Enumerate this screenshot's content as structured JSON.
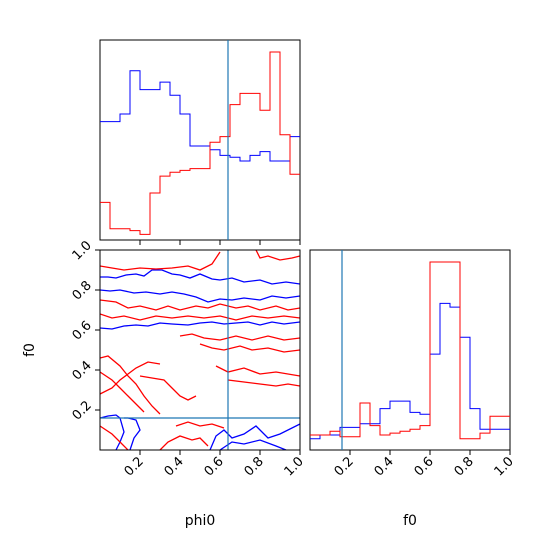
{
  "chart_data": {
    "type": "corner",
    "truth": {
      "phi0": 0.64,
      "f0": 0.16
    },
    "series_colors": {
      "blue": "#0000ff",
      "red": "#ff0000",
      "truth": "#1f77b4"
    },
    "panels": [
      {
        "id": "hist-phi0",
        "type": "histogram",
        "xlim": [
          0,
          1
        ],
        "xticks": [
          0.2,
          0.4,
          0.6,
          0.8,
          1.0
        ],
        "tick_labels_shown": false,
        "bin_edges": [
          0,
          0.05,
          0.1,
          0.15,
          0.2,
          0.25,
          0.3,
          0.35,
          0.4,
          0.45,
          0.5,
          0.55,
          0.6,
          0.65,
          0.7,
          0.75,
          0.8,
          0.85,
          0.9,
          0.95,
          1.0
        ],
        "series": [
          {
            "color": "blue",
            "values": [
              0.63,
              0.63,
              0.67,
              0.9,
              0.8,
              0.8,
              0.84,
              0.77,
              0.67,
              0.5,
              0.5,
              0.48,
              0.45,
              0.44,
              0.42,
              0.45,
              0.47,
              0.42,
              0.42,
              0.55,
              0.55
            ]
          },
          {
            "color": "red",
            "values": [
              0.2,
              0.06,
              0.06,
              0.05,
              0.03,
              0.25,
              0.34,
              0.36,
              0.37,
              0.38,
              0.38,
              0.52,
              0.55,
              0.72,
              0.78,
              0.78,
              0.69,
              1.0,
              0.56,
              0.35,
              0.35
            ]
          }
        ]
      },
      {
        "id": "contour-phi0-f0",
        "type": "contour",
        "xlim": [
          0,
          1
        ],
        "ylim": [
          0,
          1
        ],
        "xticks": [
          0.2,
          0.4,
          0.6,
          0.8,
          1.0
        ],
        "xtick_labels": [
          "0.2",
          "0.4",
          "0.6",
          "0.8",
          "1.0"
        ],
        "yticks": [
          0.2,
          0.4,
          0.6,
          0.8,
          1.0
        ],
        "ytick_labels": [
          "0.2",
          "0.4",
          "0.6",
          "0.8",
          "1.0"
        ],
        "xlabel": "phi0",
        "ylabel": "f0",
        "blue_contours": [
          [
            [
              0,
              0.865
            ],
            [
              0.04,
              0.865
            ],
            [
              0.08,
              0.86
            ],
            [
              0.13,
              0.875
            ],
            [
              0.18,
              0.88
            ],
            [
              0.22,
              0.87
            ],
            [
              0.26,
              0.9
            ],
            [
              0.31,
              0.9
            ],
            [
              0.36,
              0.88
            ],
            [
              0.4,
              0.875
            ],
            [
              0.45,
              0.86
            ],
            [
              0.5,
              0.88
            ],
            [
              0.56,
              0.855
            ],
            [
              0.6,
              0.85
            ],
            [
              0.66,
              0.86
            ],
            [
              0.72,
              0.84
            ],
            [
              0.8,
              0.85
            ],
            [
              0.86,
              0.83
            ],
            [
              0.93,
              0.84
            ],
            [
              1,
              0.83
            ]
          ],
          [
            [
              0,
              0.8
            ],
            [
              0.05,
              0.795
            ],
            [
              0.1,
              0.8
            ],
            [
              0.17,
              0.785
            ],
            [
              0.23,
              0.79
            ],
            [
              0.3,
              0.78
            ],
            [
              0.36,
              0.79
            ],
            [
              0.42,
              0.78
            ],
            [
              0.48,
              0.765
            ],
            [
              0.54,
              0.74
            ],
            [
              0.6,
              0.755
            ],
            [
              0.66,
              0.75
            ],
            [
              0.72,
              0.76
            ],
            [
              0.8,
              0.75
            ],
            [
              0.86,
              0.77
            ],
            [
              0.93,
              0.76
            ],
            [
              1,
              0.77
            ]
          ],
          [
            [
              0,
              0.61
            ],
            [
              0.06,
              0.605
            ],
            [
              0.12,
              0.62
            ],
            [
              0.18,
              0.625
            ],
            [
              0.24,
              0.62
            ],
            [
              0.3,
              0.635
            ],
            [
              0.36,
              0.63
            ],
            [
              0.44,
              0.625
            ],
            [
              0.5,
              0.635
            ],
            [
              0.56,
              0.64
            ],
            [
              0.62,
              0.63
            ],
            [
              0.68,
              0.635
            ],
            [
              0.74,
              0.64
            ],
            [
              0.8,
              0.625
            ],
            [
              0.86,
              0.64
            ],
            [
              0.92,
              0.63
            ],
            [
              1,
              0.64
            ]
          ],
          [
            [
              0,
              0.16
            ],
            [
              0.04,
              0.17
            ],
            [
              0.08,
              0.175
            ],
            [
              0.1,
              0.16
            ],
            [
              0.12,
              0.09
            ],
            [
              0.1,
              0.04
            ],
            [
              0.08,
              0.0
            ]
          ],
          [
            [
              0.15,
              0.0
            ],
            [
              0.17,
              0.06
            ],
            [
              0.2,
              0.1
            ],
            [
              0.18,
              0.15
            ],
            [
              0.14,
              0.16
            ],
            [
              0.12,
              0.16
            ]
          ],
          [
            [
              0.55,
              0.0
            ],
            [
              0.58,
              0.07
            ],
            [
              0.62,
              0.1
            ],
            [
              0.66,
              0.06
            ],
            [
              0.72,
              0.08
            ],
            [
              0.78,
              0.12
            ],
            [
              0.84,
              0.06
            ],
            [
              0.9,
              0.08
            ],
            [
              1,
              0.13
            ]
          ],
          [
            [
              0.6,
              0.0
            ],
            [
              0.66,
              0.04
            ],
            [
              0.72,
              0.03
            ],
            [
              0.8,
              0.05
            ],
            [
              0.88,
              0.02
            ],
            [
              0.93,
              0.0
            ]
          ]
        ],
        "red_contours": [
          [
            [
              0,
              0.92
            ],
            [
              0.06,
              0.91
            ],
            [
              0.12,
              0.9
            ],
            [
              0.2,
              0.91
            ],
            [
              0.28,
              0.905
            ],
            [
              0.36,
              0.91
            ],
            [
              0.44,
              0.92
            ],
            [
              0.5,
              0.9
            ],
            [
              0.56,
              0.93
            ],
            [
              0.6,
              0.99
            ]
          ],
          [
            [
              0.78,
              1.0
            ],
            [
              0.8,
              0.96
            ],
            [
              0.84,
              0.97
            ],
            [
              0.9,
              0.95
            ],
            [
              0.96,
              0.96
            ],
            [
              1,
              0.97
            ]
          ],
          [
            [
              0,
              0.75
            ],
            [
              0.08,
              0.74
            ],
            [
              0.14,
              0.71
            ],
            [
              0.2,
              0.72
            ],
            [
              0.28,
              0.7
            ],
            [
              0.34,
              0.72
            ],
            [
              0.4,
              0.7
            ],
            [
              0.48,
              0.72
            ],
            [
              0.54,
              0.71
            ],
            [
              0.6,
              0.73
            ],
            [
              0.68,
              0.71
            ],
            [
              0.74,
              0.72
            ],
            [
              0.8,
              0.7
            ],
            [
              0.88,
              0.72
            ],
            [
              0.94,
              0.7
            ],
            [
              1,
              0.71
            ]
          ],
          [
            [
              0,
              0.68
            ],
            [
              0.06,
              0.66
            ],
            [
              0.12,
              0.67
            ],
            [
              0.2,
              0.65
            ],
            [
              0.28,
              0.67
            ],
            [
              0.36,
              0.66
            ],
            [
              0.44,
              0.67
            ],
            [
              0.52,
              0.66
            ],
            [
              0.6,
              0.67
            ],
            [
              0.68,
              0.65
            ],
            [
              0.76,
              0.67
            ],
            [
              0.84,
              0.66
            ],
            [
              0.92,
              0.67
            ],
            [
              1,
              0.66
            ]
          ],
          [
            [
              0.4,
              0.57
            ],
            [
              0.46,
              0.58
            ],
            [
              0.52,
              0.56
            ],
            [
              0.6,
              0.55
            ],
            [
              0.68,
              0.57
            ],
            [
              0.76,
              0.55
            ],
            [
              0.84,
              0.57
            ],
            [
              0.92,
              0.55
            ],
            [
              1,
              0.56
            ]
          ],
          [
            [
              0.5,
              0.53
            ],
            [
              0.56,
              0.51
            ],
            [
              0.62,
              0.5
            ],
            [
              0.7,
              0.52
            ],
            [
              0.76,
              0.5
            ],
            [
              0.84,
              0.51
            ],
            [
              0.92,
              0.49
            ],
            [
              1,
              0.5
            ]
          ],
          [
            [
              0.0,
              0.46
            ],
            [
              0.04,
              0.47
            ],
            [
              0.1,
              0.42
            ],
            [
              0.14,
              0.37
            ],
            [
              0.18,
              0.33
            ],
            [
              0.22,
              0.27
            ],
            [
              0.26,
              0.22
            ],
            [
              0.3,
              0.18
            ]
          ],
          [
            [
              0.0,
              0.39
            ],
            [
              0.06,
              0.35
            ],
            [
              0.1,
              0.31
            ],
            [
              0.14,
              0.27
            ],
            [
              0.18,
              0.23
            ],
            [
              0.22,
              0.19
            ]
          ],
          [
            [
              0.0,
              0.28
            ],
            [
              0.06,
              0.31
            ],
            [
              0.1,
              0.35
            ],
            [
              0.14,
              0.38
            ],
            [
              0.18,
              0.41
            ],
            [
              0.24,
              0.44
            ],
            [
              0.3,
              0.43
            ]
          ],
          [
            [
              0.2,
              0.37
            ],
            [
              0.26,
              0.36
            ],
            [
              0.32,
              0.35
            ],
            [
              0.36,
              0.31
            ],
            [
              0.4,
              0.27
            ],
            [
              0.44,
              0.25
            ],
            [
              0.48,
              0.27
            ]
          ],
          [
            [
              0.64,
              0.35
            ],
            [
              0.72,
              0.34
            ],
            [
              0.8,
              0.33
            ],
            [
              0.88,
              0.32
            ],
            [
              0.94,
              0.33
            ],
            [
              1,
              0.32
            ]
          ],
          [
            [
              0.58,
              0.42
            ],
            [
              0.64,
              0.39
            ],
            [
              0.72,
              0.41
            ],
            [
              0.8,
              0.38
            ],
            [
              0.88,
              0.39
            ],
            [
              1,
              0.37
            ]
          ],
          [
            [
              0.0,
              0.12
            ],
            [
              0.06,
              0.08
            ],
            [
              0.1,
              0.04
            ],
            [
              0.14,
              0.0
            ]
          ],
          [
            [
              0.3,
              0.0
            ],
            [
              0.34,
              0.04
            ],
            [
              0.4,
              0.07
            ],
            [
              0.46,
              0.05
            ],
            [
              0.5,
              0.06
            ],
            [
              0.54,
              0.02
            ]
          ],
          [
            [
              0.38,
              0.12
            ],
            [
              0.44,
              0.14
            ],
            [
              0.5,
              0.12
            ],
            [
              0.56,
              0.13
            ],
            [
              0.62,
              0.11
            ]
          ]
        ]
      },
      {
        "id": "hist-f0",
        "type": "histogram",
        "xlim": [
          0,
          1
        ],
        "xticks": [
          0.2,
          0.4,
          0.6,
          0.8,
          1.0
        ],
        "xtick_labels": [
          "0.2",
          "0.4",
          "0.6",
          "0.8",
          "1.0"
        ],
        "xlabel": "f0",
        "bin_edges": [
          0,
          0.05,
          0.1,
          0.15,
          0.2,
          0.25,
          0.3,
          0.35,
          0.4,
          0.45,
          0.5,
          0.55,
          0.6,
          0.65,
          0.7,
          0.75,
          0.8,
          0.85,
          0.9,
          0.95,
          1.0
        ],
        "series": [
          {
            "color": "blue",
            "values": [
              0.06,
              0.08,
              0.08,
              0.12,
              0.12,
              0.14,
              0.14,
              0.22,
              0.26,
              0.26,
              0.2,
              0.19,
              0.51,
              0.78,
              0.76,
              0.6,
              0.22,
              0.11,
              0.11,
              0.11,
              0.11
            ]
          },
          {
            "color": "red",
            "values": [
              0.08,
              0.08,
              0.1,
              0.07,
              0.07,
              0.25,
              0.13,
              0.08,
              0.09,
              0.1,
              0.11,
              0.13,
              1.0,
              1.0,
              1.0,
              0.06,
              0.06,
              0.09,
              0.18,
              0.18,
              0.18
            ]
          }
        ]
      }
    ]
  }
}
